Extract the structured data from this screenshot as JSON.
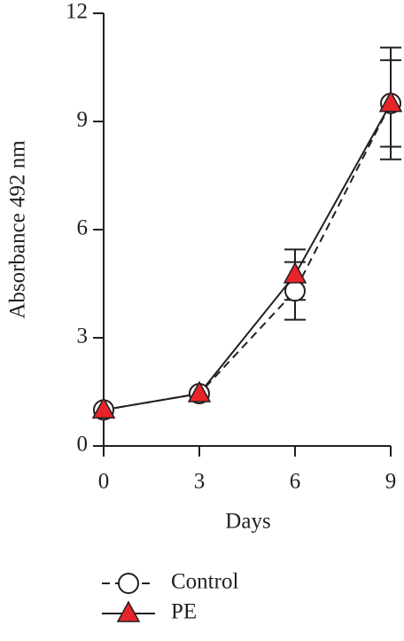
{
  "chart_data": {
    "type": "line",
    "x_label": "Days",
    "y_label": "Absorbance 492 nm",
    "x": [
      0,
      3,
      6,
      9
    ],
    "series": [
      {
        "name": "Control",
        "color": "#ffffff",
        "line_style": "dashed",
        "marker": "circle",
        "values": [
          1.0,
          1.45,
          4.3,
          9.5
        ],
        "errors": [
          0,
          0,
          0.8,
          1.55
        ]
      },
      {
        "name": "PE",
        "color": "#e8242b",
        "line_style": "solid",
        "marker": "triangle",
        "values": [
          1.0,
          1.45,
          4.75,
          9.5
        ],
        "errors": [
          0,
          0,
          0.7,
          1.2
        ]
      }
    ],
    "xlim": [
      0,
      9
    ],
    "xticks": [
      0,
      3,
      6,
      9
    ],
    "ylim": [
      0,
      12
    ],
    "yticks": [
      0,
      3,
      6,
      9,
      12
    ],
    "legend": "bottom"
  }
}
